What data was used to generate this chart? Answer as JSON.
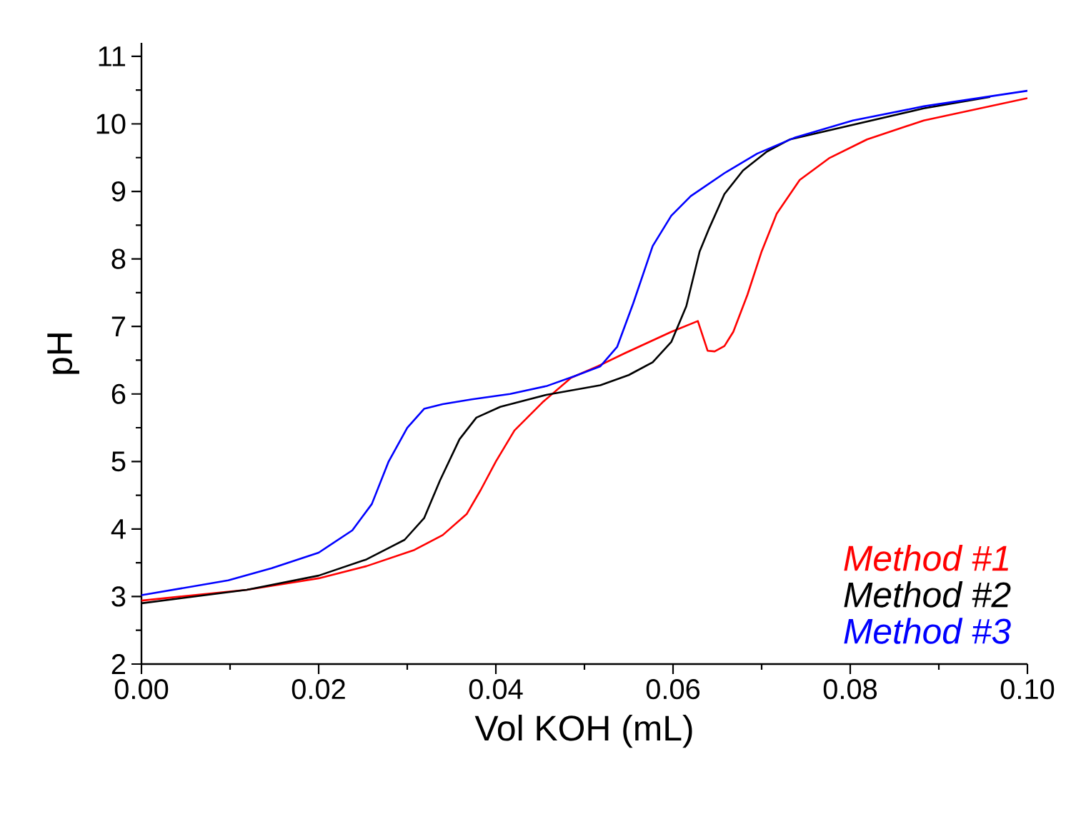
{
  "chart_data": {
    "type": "line",
    "xlabel": "Vol KOH (mL)",
    "ylabel": "pH",
    "xlim": [
      0,
      0.1
    ],
    "ylim": [
      2,
      11.2
    ],
    "xticks": [
      {
        "value": 0,
        "label": "0.00"
      },
      {
        "value": 0.02,
        "label": "0.02"
      },
      {
        "value": 0.04,
        "label": "0.04"
      },
      {
        "value": 0.06,
        "label": "0.06"
      },
      {
        "value": 0.08,
        "label": "0.08"
      },
      {
        "value": 0.1,
        "label": "0.10"
      }
    ],
    "yticks": [
      2,
      3,
      4,
      5,
      6,
      7,
      8,
      9,
      10,
      11
    ],
    "grid": false,
    "legend": "bottom right",
    "marker": "none",
    "line_style": "solid",
    "series": [
      {
        "name": "Method #1",
        "color": "#ff0000",
        "x": [
          0,
          0.0119,
          0.02,
          0.0254,
          0.0308,
          0.034,
          0.0367,
          0.0383,
          0.04,
          0.0421,
          0.0453,
          0.0485,
          0.0515,
          0.0545,
          0.0598,
          0.0628,
          0.0639,
          0.0647,
          0.0658,
          0.0668,
          0.0684,
          0.07,
          0.0717,
          0.0743,
          0.0776,
          0.0819,
          0.0883,
          0.1
        ],
        "values": [
          2.94,
          3.1,
          3.27,
          3.45,
          3.69,
          3.91,
          4.22,
          4.58,
          5.0,
          5.46,
          5.88,
          6.24,
          6.41,
          6.6,
          6.92,
          7.08,
          6.64,
          6.63,
          6.71,
          6.92,
          7.47,
          8.11,
          8.67,
          9.17,
          9.49,
          9.77,
          10.05,
          10.38
        ]
      },
      {
        "name": "Method #2",
        "color": "#000000",
        "x": [
          0,
          0.0119,
          0.02,
          0.0254,
          0.0297,
          0.0319,
          0.0337,
          0.0359,
          0.0378,
          0.0405,
          0.0458,
          0.0518,
          0.055,
          0.0577,
          0.0598,
          0.0615,
          0.063,
          0.0641,
          0.0658,
          0.0679,
          0.0706,
          0.0732,
          0.0883,
          0.0958
        ],
        "values": [
          2.9,
          3.1,
          3.31,
          3.55,
          3.84,
          4.16,
          4.72,
          5.33,
          5.65,
          5.81,
          5.99,
          6.13,
          6.28,
          6.47,
          6.77,
          7.3,
          8.11,
          8.46,
          8.96,
          9.31,
          9.59,
          9.77,
          10.23,
          10.4
        ]
      },
      {
        "name": "Method #3",
        "color": "#0000ff",
        "x": [
          0,
          0.0098,
          0.0147,
          0.02,
          0.0238,
          0.026,
          0.0279,
          0.03,
          0.0319,
          0.034,
          0.0373,
          0.0416,
          0.0458,
          0.049,
          0.0518,
          0.0537,
          0.0555,
          0.0577,
          0.0598,
          0.062,
          0.0658,
          0.0695,
          0.0738,
          0.0803,
          0.0883,
          0.1
        ],
        "values": [
          3.02,
          3.24,
          3.42,
          3.65,
          3.98,
          4.37,
          5.0,
          5.5,
          5.78,
          5.85,
          5.92,
          6.0,
          6.12,
          6.27,
          6.41,
          6.7,
          7.34,
          8.19,
          8.64,
          8.93,
          9.27,
          9.56,
          9.8,
          10.05,
          10.26,
          10.49
        ]
      }
    ]
  }
}
